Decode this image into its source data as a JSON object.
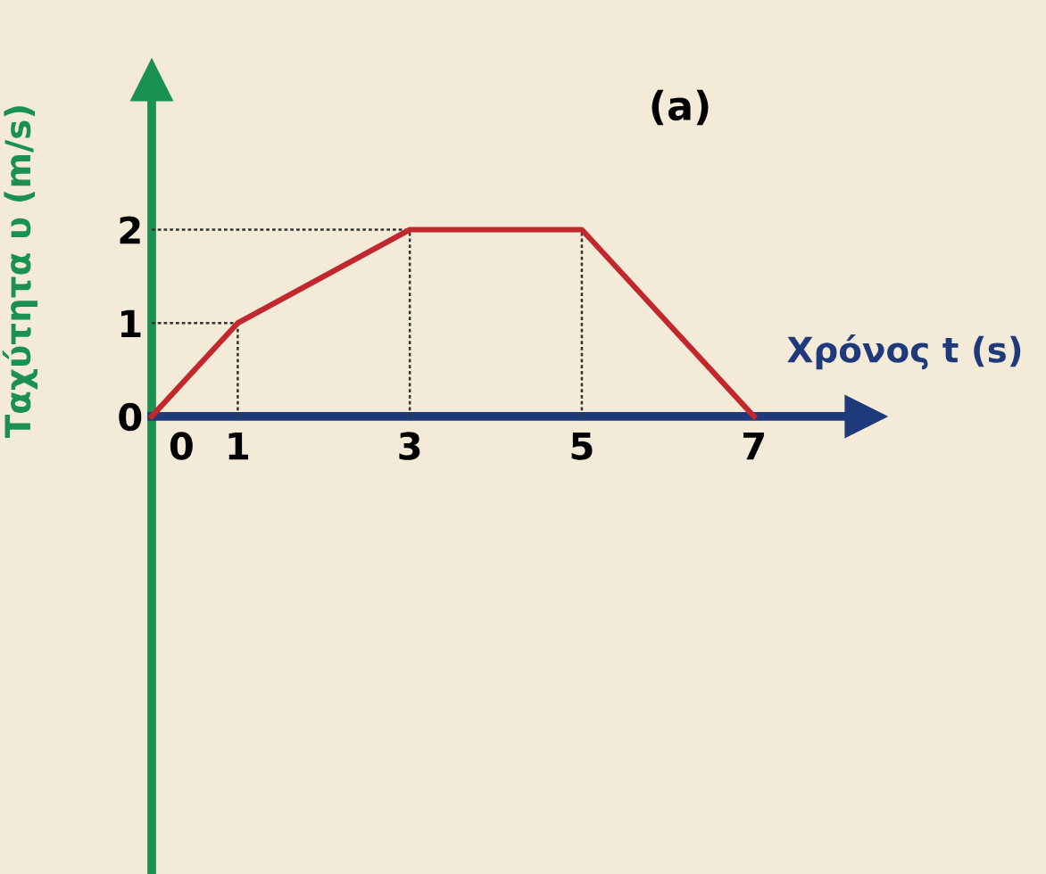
{
  "chart_data": {
    "type": "line",
    "xlabel": "Χρόνος t (s)",
    "ylabel": "Ταχύτητα υ (m/s)",
    "annotations": [
      "(a)"
    ],
    "x": [
      0,
      1,
      3,
      5,
      7
    ],
    "series": [
      {
        "color": "#c0282d",
        "values": [
          0,
          1,
          2,
          2,
          0
        ],
        "line_style": "solid"
      },
      {
        "color": "#333333",
        "x": [
          0,
          1
        ],
        "values": [
          1,
          1
        ],
        "line_style": "dotted"
      },
      {
        "color": "#333333",
        "x": [
          1,
          1
        ],
        "values": [
          0,
          1
        ],
        "line_style": "dotted"
      },
      {
        "color": "#333333",
        "x": [
          0,
          3
        ],
        "values": [
          2,
          2
        ],
        "line_style": "dotted"
      },
      {
        "color": "#333333",
        "x": [
          3,
          3
        ],
        "values": [
          0,
          2
        ],
        "line_style": "dotted"
      },
      {
        "color": "#333333",
        "x": [
          5,
          5
        ],
        "values": [
          0,
          2
        ],
        "line_style": "dotted"
      }
    ],
    "xlim": [
      0,
      8.3
    ],
    "ylim": [
      -4.9,
      3.6
    ],
    "xticks": [
      0,
      1,
      3,
      5,
      7
    ],
    "yticks": [
      0,
      1,
      2
    ],
    "grid": false,
    "marker": "none"
  }
}
